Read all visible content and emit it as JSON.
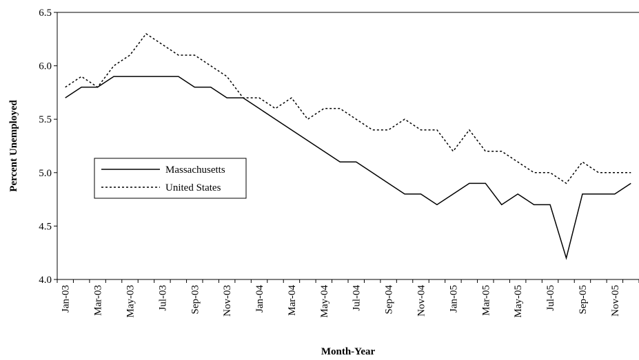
{
  "chart_data": {
    "type": "line",
    "x_label": "Month-Year",
    "y_label": "Percent Unemployed",
    "categories": [
      "Jan-03",
      null,
      "Mar-03",
      null,
      "May-03",
      null,
      "Jul-03",
      null,
      "Sep-03",
      null,
      "Nov-03",
      null,
      "Jan-04",
      null,
      "Mar-04",
      null,
      "May-04",
      null,
      "Jul-04",
      null,
      "Sep-04",
      null,
      "Nov-04",
      null,
      "Jan-05",
      null,
      "Mar-05",
      null,
      "May-05",
      null,
      "Jul-05",
      null,
      "Sep-05",
      null,
      "Nov-05",
      null
    ],
    "series": [
      {
        "name": "Massachusetts",
        "color": "#000000",
        "style": "solid",
        "values": [
          5.7,
          5.8,
          5.8,
          5.9,
          5.9,
          5.9,
          5.9,
          5.9,
          5.8,
          5.8,
          5.7,
          5.7,
          5.6,
          5.5,
          5.4,
          5.3,
          5.2,
          5.1,
          5.1,
          5.0,
          4.9,
          4.8,
          4.8,
          4.7,
          4.8,
          4.9,
          4.9,
          4.7,
          4.8,
          4.7,
          4.7,
          4.2,
          4.8,
          4.8,
          4.8,
          4.9
        ]
      },
      {
        "name": "United States",
        "color": "#000000",
        "style": "dashed",
        "values": [
          5.8,
          5.9,
          5.8,
          6.0,
          6.1,
          6.3,
          6.2,
          6.1,
          6.1,
          6.0,
          5.9,
          5.7,
          5.7,
          5.6,
          5.7,
          5.5,
          5.6,
          5.6,
          5.5,
          5.4,
          5.4,
          5.5,
          5.4,
          5.4,
          5.2,
          5.4,
          5.2,
          5.2,
          5.1,
          5.0,
          5.0,
          4.9,
          5.1,
          5.0,
          5.0,
          5.0
        ]
      }
    ],
    "ylim": [
      4,
      6.5
    ],
    "yticks": [
      {
        "value": 4,
        "label": "4.0"
      },
      4.5,
      {
        "value": 5,
        "label": "5.0"
      },
      5.5,
      {
        "value": 6,
        "label": "6.0"
      },
      6.5
    ],
    "grid": false,
    "legend": "left"
  }
}
